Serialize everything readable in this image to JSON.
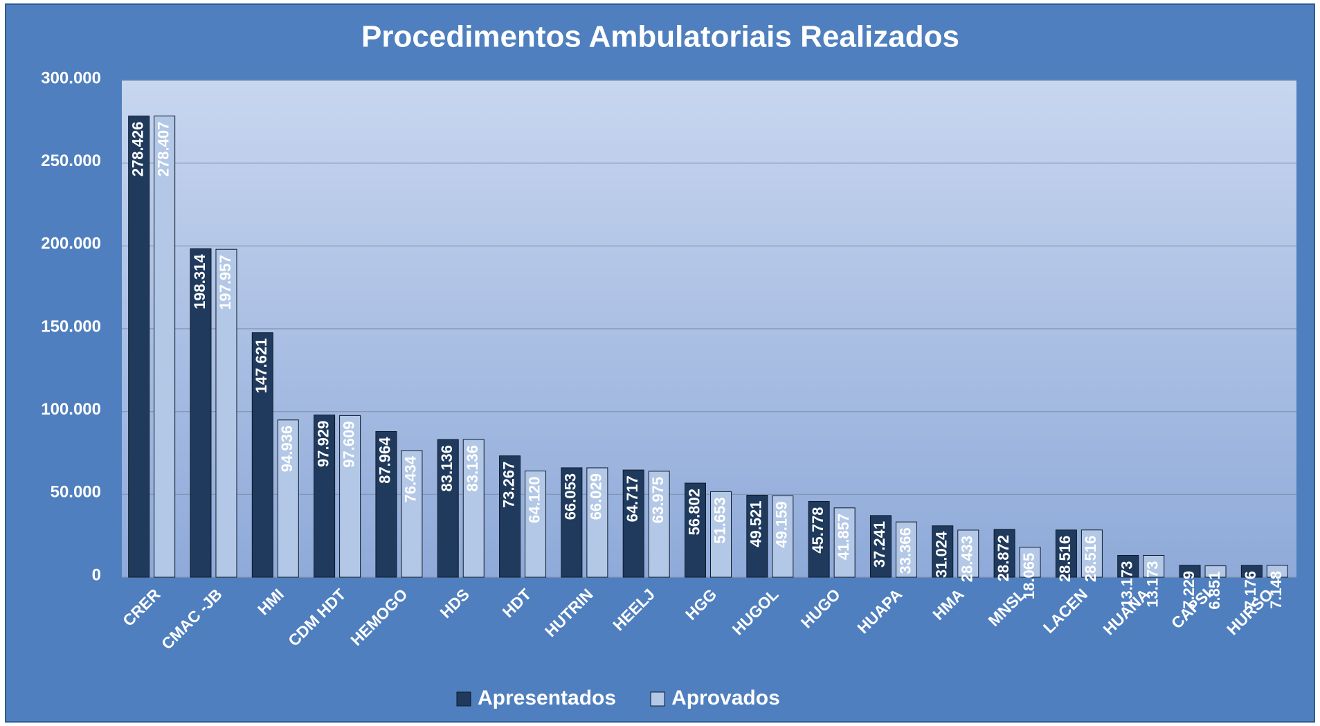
{
  "chart_data": {
    "type": "bar",
    "title": "Procedimentos Ambulatoriais Realizados",
    "categories": [
      "CRER",
      "CMAC -JB",
      "HMI",
      "CDM HDT",
      "HEMOGO",
      "HDS",
      "HDT",
      "HUTRIN",
      "HEELJ",
      "HGG",
      "HUGOL",
      "HUGO",
      "HUAPA",
      "HMA",
      "MNSL",
      "LACEN",
      "HUANA",
      "CAPSI",
      "HURSO"
    ],
    "series": [
      {
        "name": "Apresentados",
        "color": "#1f3a5c",
        "values": [
          278426,
          198314,
          147621,
          97929,
          87964,
          83136,
          73267,
          66053,
          64717,
          56802,
          49521,
          45778,
          37241,
          31024,
          28872,
          28516,
          13173,
          7229,
          7176
        ],
        "value_labels": [
          "278.426",
          "198.314",
          "147.621",
          "97.929",
          "87.964",
          "83.136",
          "73.267",
          "66.053",
          "64.717",
          "56.802",
          "49.521",
          "45.778",
          "37.241",
          "31.024",
          "28.872",
          "28.516",
          "13.173",
          "7.229",
          "7.176"
        ]
      },
      {
        "name": "Aprovados",
        "color": "#b3c8e6",
        "values": [
          278407,
          197957,
          94936,
          97609,
          76434,
          83136,
          64120,
          66029,
          63975,
          51653,
          49159,
          41857,
          33366,
          28433,
          18065,
          28516,
          13173,
          6851,
          7148
        ],
        "value_labels": [
          "278.407",
          "197.957",
          "94.936",
          "97.609",
          "76.434",
          "83.136",
          "64.120",
          "66.029",
          "63.975",
          "51.653",
          "49.159",
          "41.857",
          "33.366",
          "28.433",
          "18.065",
          "28.516",
          "13.173",
          "6.851",
          "7.148"
        ]
      }
    ],
    "ylim": [
      0,
      300000
    ],
    "yticks": [
      0,
      {
        "value": 50000,
        "label": "50.000"
      },
      {
        "value": 100000,
        "label": "100.000"
      },
      {
        "value": 150000,
        "label": "150.000"
      },
      {
        "value": 200000,
        "label": "200.000"
      },
      {
        "value": 250000,
        "label": "250.000"
      },
      {
        "value": 300000,
        "label": "300.000"
      }
    ],
    "grid": true,
    "legend": "bottom"
  }
}
